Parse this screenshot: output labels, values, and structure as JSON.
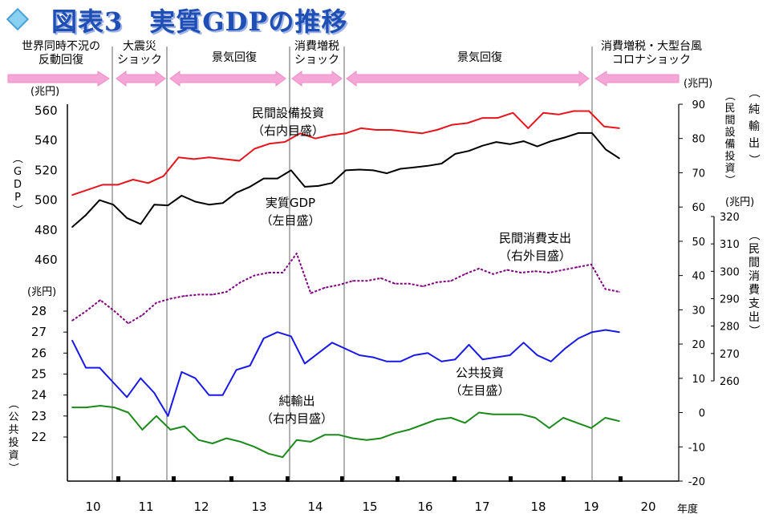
{
  "title": "図表3　実質GDPの推移",
  "chart_data": {
    "type": "line",
    "x_tick_labels": [
      "10",
      "11",
      "12",
      "13",
      "14",
      "15",
      "16",
      "17",
      "18",
      "19",
      "20"
    ],
    "x_axis_label": "年度",
    "period_labels": [
      {
        "text": "世界同時不況の\n反動回復",
        "dir": "right"
      },
      {
        "text": "大震災\nショック",
        "dir": "both"
      },
      {
        "text": "景気回復",
        "dir": "both"
      },
      {
        "text": "消費増税\nショック",
        "dir": "both"
      },
      {
        "text": "景気回復",
        "dir": "both"
      },
      {
        "text": "消費増税・大型台風\nコロナショック",
        "dir": "left"
      }
    ],
    "axes": {
      "left_upper": {
        "label": "（GDP）",
        "unit": "(兆円)",
        "ticks": [
          460,
          480,
          500,
          520,
          540,
          560
        ]
      },
      "left_lower": {
        "label": "（公共投資）",
        "unit": "(兆円)",
        "ticks": [
          22,
          23,
          24,
          25,
          26,
          27,
          28
        ]
      },
      "right_inner": {
        "label": "（民間設備投資）",
        "label2": "（純輸出）",
        "unit": "(兆円)",
        "ticks": [
          -20,
          -10,
          0,
          10,
          20,
          30,
          40,
          50,
          60,
          70,
          80,
          90
        ]
      },
      "right_outer": {
        "label": "（民間消費支出）",
        "unit": "(兆円)",
        "ticks": [
          260,
          270,
          280,
          290,
          300,
          310,
          320
        ]
      }
    },
    "series": [
      {
        "name": "民間設備投資",
        "axis": "right_inner",
        "color": "#e8141c",
        "dashed": false,
        "annotation": "民間設備投資\n（右内目盛）",
        "values": [
          63.5,
          65.0,
          66.5,
          66.5,
          68.0,
          67.0,
          69.0,
          74.5,
          74.0,
          74.5,
          74.0,
          73.5,
          77.0,
          78.5,
          79.0,
          81.5,
          80.0,
          81.0,
          81.5,
          83.0,
          82.5,
          82.5,
          82.0,
          81.5,
          82.5,
          84.0,
          84.5,
          86.0,
          86.0,
          87.5,
          83.0,
          87.5,
          87.0,
          88.0,
          88.0,
          83.5,
          83.0
        ]
      },
      {
        "name": "実質GDP",
        "axis": "left_upper",
        "color": "#000000",
        "dashed": false,
        "annotation": "実質GDP\n（左目盛）",
        "values": [
          482.0,
          490.0,
          500.0,
          497.0,
          488.0,
          484.0,
          497.0,
          496.5,
          503.0,
          499.0,
          497.0,
          498.0,
          505.0,
          509.0,
          514.5,
          514.5,
          520.0,
          509.0,
          509.5,
          511.5,
          520.0,
          520.5,
          520.0,
          518.0,
          521.0,
          522.0,
          523.0,
          524.5,
          531.0,
          533.0,
          536.5,
          539.0,
          537.5,
          539.5,
          536.0,
          539.5,
          542.0,
          545.0,
          545.0,
          534.0,
          528.0
        ]
      },
      {
        "name": "民間消費支出",
        "axis": "right_outer",
        "color": "#800080",
        "dashed": true,
        "annotation": "民間消費支出\n（右外目盛）",
        "values": [
          282.0,
          285.5,
          289.5,
          285.5,
          281.0,
          284.0,
          288.5,
          290.0,
          291.0,
          291.5,
          291.5,
          292.5,
          296.0,
          298.5,
          299.5,
          299.5,
          306.5,
          292.0,
          294.0,
          295.0,
          296.5,
          296.5,
          297.5,
          295.5,
          295.5,
          294.5,
          296.0,
          296.5,
          299.0,
          301.0,
          299.0,
          300.5,
          299.5,
          300.0,
          299.5,
          300.5,
          301.5,
          302.5,
          293.5,
          292.5
        ]
      },
      {
        "name": "公共投資",
        "axis": "left_lower",
        "color": "#1818e8",
        "dashed": false,
        "annotation": "公共投資\n（左目盛）",
        "values": [
          26.6,
          25.3,
          25.3,
          24.6,
          23.9,
          24.8,
          24.1,
          23.0,
          25.1,
          24.8,
          24.0,
          24.0,
          25.2,
          25.4,
          26.7,
          27.0,
          26.8,
          25.5,
          26.0,
          26.5,
          26.2,
          25.9,
          25.8,
          25.6,
          25.6,
          25.9,
          26.0,
          25.6,
          25.7,
          26.4,
          25.7,
          25.8,
          25.9,
          26.5,
          25.9,
          25.6,
          26.2,
          26.7,
          27.0,
          27.1,
          27.0
        ]
      },
      {
        "name": "純輸出",
        "axis": "right_inner",
        "color": "#1a8a1a",
        "dashed": false,
        "annotation": "純輸出\n（右内目盛）",
        "values": [
          1.5,
          1.5,
          2.0,
          1.5,
          0.0,
          -5.0,
          -1.0,
          -5.0,
          -4.0,
          -8.0,
          -9.0,
          -7.5,
          -8.5,
          -10.0,
          -12.0,
          -13.0,
          -8.0,
          -8.5,
          -6.5,
          -6.5,
          -7.5,
          -8.0,
          -7.5,
          -6.0,
          -5.0,
          -3.5,
          -2.0,
          -1.5,
          -3.0,
          0.0,
          -0.5,
          -0.5,
          -0.5,
          -1.5,
          -4.5,
          -1.5,
          -3.0,
          -4.5,
          -1.5,
          -2.5
        ]
      }
    ]
  }
}
